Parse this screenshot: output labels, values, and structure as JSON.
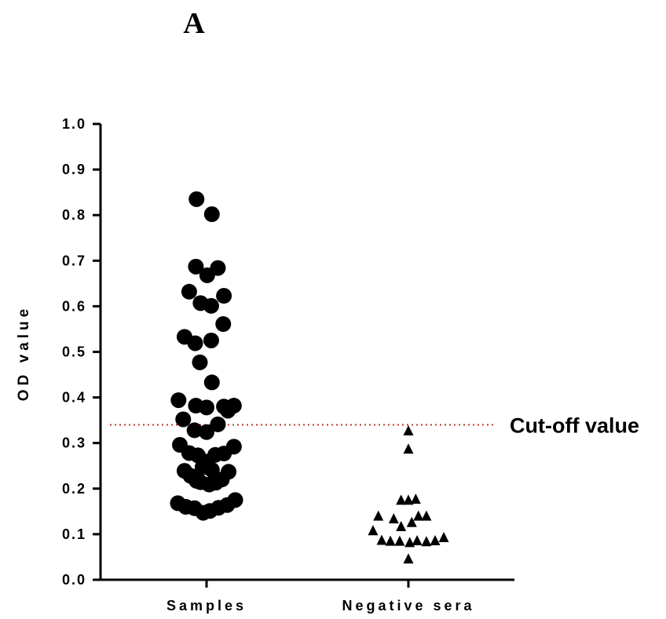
{
  "panel_label": "A",
  "chart_data": {
    "type": "scatter",
    "ylabel": "OD value",
    "xlabel": "",
    "ylim": [
      0.0,
      1.0
    ],
    "yticks": [
      "0.0",
      "0.1",
      "0.2",
      "0.3",
      "0.4",
      "0.5",
      "0.6",
      "0.7",
      "0.8",
      "0.9",
      "1.0"
    ],
    "categories": [
      "Samples",
      "Negative sera"
    ],
    "cutoff": {
      "label": "Cut-off value",
      "value": 0.34,
      "color": "#c0392b"
    },
    "series": [
      {
        "category": "Samples",
        "marker": "circle",
        "points": [
          [
            -0.15,
            0.835
          ],
          [
            0.08,
            0.802
          ],
          [
            -0.16,
            0.687
          ],
          [
            0.01,
            0.668
          ],
          [
            0.17,
            0.684
          ],
          [
            -0.26,
            0.632
          ],
          [
            -0.09,
            0.607
          ],
          [
            0.07,
            0.601
          ],
          [
            0.26,
            0.623
          ],
          [
            0.25,
            0.561
          ],
          [
            -0.33,
            0.533
          ],
          [
            -0.17,
            0.519
          ],
          [
            0.07,
            0.525
          ],
          [
            -0.1,
            0.477
          ],
          [
            0.08,
            0.433
          ],
          [
            -0.42,
            0.394
          ],
          [
            -0.16,
            0.382
          ],
          [
            0.0,
            0.378
          ],
          [
            0.26,
            0.38
          ],
          [
            0.32,
            0.371
          ],
          [
            0.41,
            0.382
          ],
          [
            -0.35,
            0.352
          ],
          [
            0.17,
            0.341
          ],
          [
            -0.18,
            0.328
          ],
          [
            0.0,
            0.324
          ],
          [
            -0.4,
            0.296
          ],
          [
            0.41,
            0.292
          ],
          [
            -0.26,
            0.278
          ],
          [
            -0.13,
            0.273
          ],
          [
            0.13,
            0.274
          ],
          [
            0.26,
            0.277
          ],
          [
            -0.06,
            0.247
          ],
          [
            0.0,
            0.259
          ],
          [
            0.08,
            0.241
          ],
          [
            -0.33,
            0.239
          ],
          [
            -0.24,
            0.228
          ],
          [
            -0.15,
            0.217
          ],
          [
            -0.09,
            0.214
          ],
          [
            0.04,
            0.209
          ],
          [
            0.14,
            0.213
          ],
          [
            0.23,
            0.22
          ],
          [
            0.33,
            0.237
          ],
          [
            -0.43,
            0.168
          ],
          [
            -0.31,
            0.16
          ],
          [
            -0.18,
            0.157
          ],
          [
            -0.05,
            0.147
          ],
          [
            0.05,
            0.151
          ],
          [
            0.18,
            0.158
          ],
          [
            0.31,
            0.164
          ],
          [
            0.43,
            0.175
          ]
        ]
      },
      {
        "category": "Negative sera",
        "marker": "triangle",
        "points": [
          [
            0.0,
            0.327
          ],
          [
            0.0,
            0.287
          ],
          [
            -0.11,
            0.175
          ],
          [
            0.0,
            0.175
          ],
          [
            0.11,
            0.177
          ],
          [
            -0.45,
            0.14
          ],
          [
            -0.22,
            0.134
          ],
          [
            0.15,
            0.14
          ],
          [
            0.27,
            0.14
          ],
          [
            -0.11,
            0.117
          ],
          [
            0.05,
            0.126
          ],
          [
            -0.53,
            0.108
          ],
          [
            -0.4,
            0.087
          ],
          [
            -0.27,
            0.085
          ],
          [
            -0.13,
            0.085
          ],
          [
            0.02,
            0.082
          ],
          [
            0.13,
            0.086
          ],
          [
            0.27,
            0.084
          ],
          [
            0.4,
            0.086
          ],
          [
            0.53,
            0.093
          ],
          [
            0.0,
            0.046
          ]
        ]
      }
    ]
  }
}
